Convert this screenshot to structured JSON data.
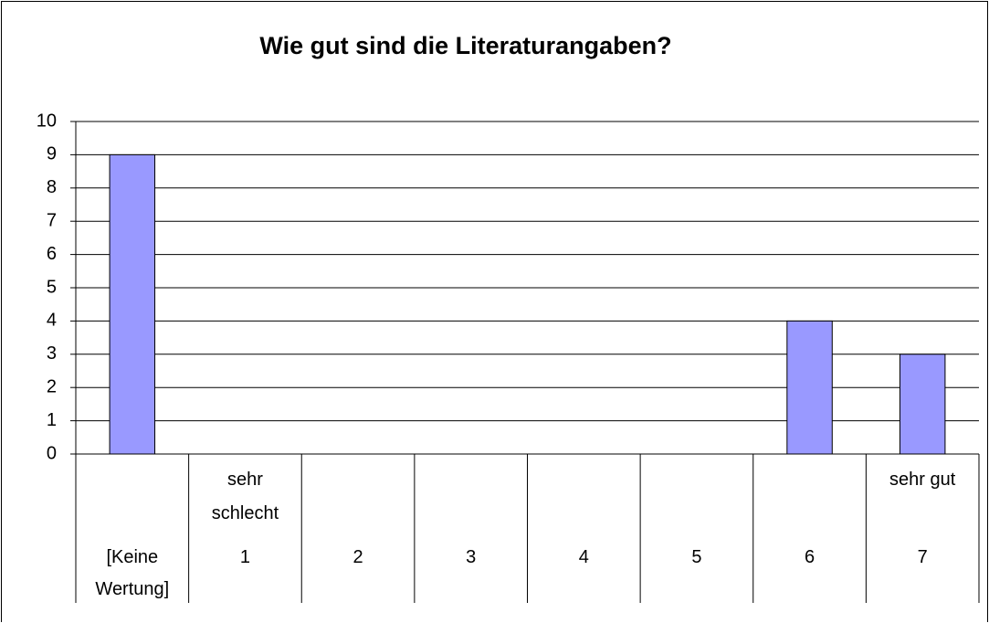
{
  "chart_data": {
    "type": "bar",
    "title": "Wie gut sind die Literaturangaben?",
    "categories": [
      "[Keine Wertung]",
      "1",
      "2",
      "3",
      "4",
      "5",
      "6",
      "7"
    ],
    "category_top_labels": [
      null,
      "sehr schlecht",
      null,
      null,
      null,
      null,
      null,
      "sehr gut"
    ],
    "values": [
      9,
      0,
      0,
      0,
      0,
      0,
      4,
      3
    ],
    "color": "#9999ff",
    "ylim": [
      0,
      10
    ],
    "yticks": [
      0,
      1,
      2,
      3,
      4,
      5,
      6,
      7,
      8,
      9,
      10
    ],
    "grid": true
  }
}
